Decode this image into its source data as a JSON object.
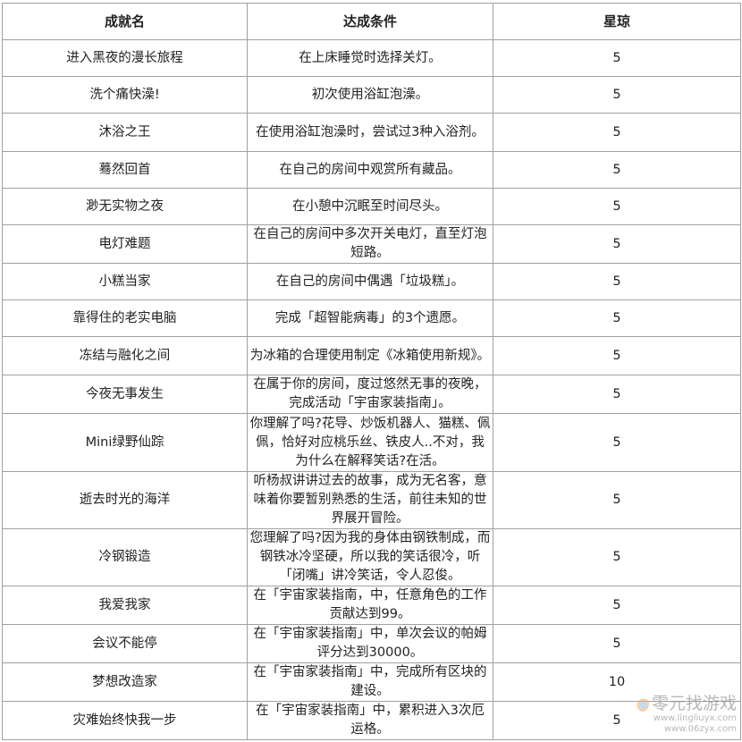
{
  "table": {
    "headers": [
      "成就名",
      "达成条件",
      "星琼"
    ],
    "rows": [
      {
        "name": "进入黑夜的漫长旅程",
        "condition": "在上床睡觉时选择关灯。",
        "reward": "5"
      },
      {
        "name": "洗个痛快澡!",
        "condition": "初次使用浴缸泡澡。",
        "reward": "5"
      },
      {
        "name": "沐浴之王",
        "condition": "在使用浴缸泡澡时，尝试过3种入浴剂。",
        "reward": "5"
      },
      {
        "name": "蓦然回首",
        "condition": "在自己的房间中观赏所有藏品。",
        "reward": "5"
      },
      {
        "name": "渺无实物之夜",
        "condition": "在小憩中沉眠至时间尽头。",
        "reward": "5"
      },
      {
        "name": "电灯难题",
        "condition": "在自己的房间中多次开关电灯，直至灯泡短路。",
        "reward": "5"
      },
      {
        "name": "小糕当家",
        "condition": "在自己的房间中偶遇「垃圾糕」。",
        "reward": "5"
      },
      {
        "name": "靠得住的老实电脑",
        "condition": "完成「超智能病毒」的3个遗愿。",
        "reward": "5"
      },
      {
        "name": "冻结与融化之间",
        "condition": "为冰箱的合理使用制定《冰箱使用新规》。",
        "reward": "5"
      },
      {
        "name": "今夜无事发生",
        "condition": "在属于你的房间，度过悠然无事的夜晚，完成活动「宇宙家装指南」。",
        "reward": "5"
      },
      {
        "name": "Mini绿野仙踪",
        "condition": "你理解了吗?花导、炒饭机器人、猫糕、佩佩，恰好对应桃乐丝、铁皮人..不对，我为什么在解释笑话?在活。",
        "reward": "5"
      },
      {
        "name": "逝去时光的海洋",
        "condition": "听杨叔讲讲过去的故事，成为无名客，意味着你要暂别熟悉的生活，前往未知的世界展开冒险。",
        "reward": "5"
      },
      {
        "name": "冷钢锻造",
        "condition": "您理解了吗?因为我的身体由钢铁制成，而钢铁冰冷坚硬，所以我的笑话很冷，听「闭嘴」讲冷笑话，令人忍俊。",
        "reward": "5"
      },
      {
        "name": "我爱我家",
        "condition": "在「宇宙家装指南，中，任意角色的工作贡献达到99。",
        "reward": "5"
      },
      {
        "name": "会议不能停",
        "condition": "在「宇宙家装指南」中，单次会议的帕姆评分达到30000。",
        "reward": "5"
      },
      {
        "name": "梦想改造家",
        "condition": "在「宇宙家装指南」中，完成所有区块的建设。",
        "reward": "10"
      },
      {
        "name": "灾难始终快我一步",
        "condition": "在「宇宙家装指南」中，累积进入3次厄运格。",
        "reward": "5"
      }
    ]
  },
  "watermark": {
    "name": "零元找游戏",
    "urls": "www.lingliuyx.com  www.06zyx.com"
  }
}
